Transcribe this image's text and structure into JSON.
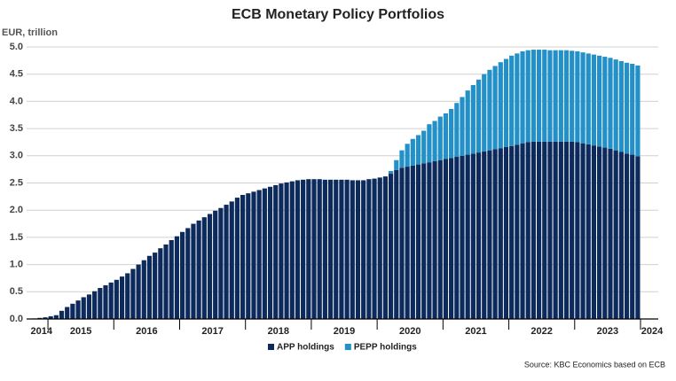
{
  "chart_data": {
    "type": "stacked_bar",
    "title": "ECB Monetary Policy Portfolios",
    "y_label": "EUR, trillion",
    "source": "Source: KBC Economics based on ECB",
    "year_labels": [
      "2014",
      "2015",
      "2016",
      "2017",
      "2018",
      "2019",
      "2020",
      "2021",
      "2022",
      "2023",
      "2024"
    ],
    "categories": [
      null,
      null,
      null,
      null,
      null,
      null,
      null,
      null,
      null,
      null,
      null,
      null,
      null,
      null,
      null,
      null,
      null,
      null,
      null,
      null,
      null,
      null,
      null,
      null,
      null,
      null,
      null,
      null,
      null,
      null,
      null,
      null,
      null,
      null,
      null,
      null,
      null,
      null,
      null,
      null,
      null,
      null,
      null,
      null,
      null,
      null,
      null,
      null,
      null,
      null,
      null,
      null,
      null,
      null,
      null,
      null,
      null,
      null,
      null,
      null,
      null,
      null,
      null,
      null,
      null,
      null,
      null,
      null,
      null,
      null,
      null,
      null,
      null,
      null,
      null,
      null,
      null,
      null,
      null,
      null,
      null,
      null,
      null,
      null,
      null,
      null,
      null,
      null,
      null,
      null,
      null,
      null,
      null,
      null,
      null,
      null,
      null,
      null,
      null,
      null,
      null,
      null,
      null,
      null,
      null,
      null,
      null,
      null,
      null,
      null,
      null
    ],
    "series": [
      {
        "name": "APP holdings",
        "color": "#0d2a5c",
        "values": [
          0.01,
          0.02,
          0.03,
          0.05,
          0.07,
          0.15,
          0.22,
          0.28,
          0.34,
          0.4,
          0.45,
          0.51,
          0.57,
          0.62,
          0.67,
          0.72,
          0.78,
          0.84,
          0.92,
          1.0,
          1.08,
          1.16,
          1.22,
          1.3,
          1.37,
          1.45,
          1.52,
          1.6,
          1.67,
          1.75,
          1.81,
          1.87,
          1.93,
          1.99,
          2.04,
          2.1,
          2.16,
          2.23,
          2.28,
          2.31,
          2.34,
          2.37,
          2.4,
          2.43,
          2.46,
          2.49,
          2.51,
          2.53,
          2.55,
          2.56,
          2.57,
          2.57,
          2.57,
          2.56,
          2.56,
          2.56,
          2.56,
          2.56,
          2.55,
          2.55,
          2.55,
          2.57,
          2.58,
          2.6,
          2.62,
          2.67,
          2.74,
          2.78,
          2.8,
          2.82,
          2.84,
          2.86,
          2.88,
          2.9,
          2.92,
          2.94,
          2.96,
          2.98,
          3.0,
          3.02,
          3.04,
          3.06,
          3.08,
          3.1,
          3.12,
          3.14,
          3.16,
          3.18,
          3.2,
          3.23,
          3.25,
          3.26,
          3.26,
          3.26,
          3.26,
          3.26,
          3.26,
          3.26,
          3.26,
          3.25,
          3.23,
          3.21,
          3.19,
          3.17,
          3.15,
          3.13,
          3.1,
          3.07,
          3.04,
          3.02,
          2.99
        ]
      },
      {
        "name": "PEPP holdings",
        "color": "#2390c8",
        "values": [
          null,
          null,
          null,
          null,
          null,
          null,
          null,
          null,
          null,
          null,
          null,
          null,
          null,
          null,
          null,
          null,
          null,
          null,
          null,
          null,
          null,
          null,
          null,
          null,
          null,
          null,
          null,
          null,
          null,
          null,
          null,
          null,
          null,
          null,
          null,
          null,
          null,
          null,
          null,
          null,
          null,
          null,
          null,
          null,
          null,
          null,
          null,
          null,
          null,
          null,
          null,
          null,
          null,
          null,
          null,
          null,
          null,
          null,
          null,
          null,
          null,
          null,
          null,
          null,
          null,
          0.05,
          0.18,
          0.32,
          0.42,
          0.49,
          0.54,
          0.6,
          0.7,
          0.74,
          0.8,
          0.84,
          0.9,
          0.99,
          1.08,
          1.18,
          1.26,
          1.34,
          1.42,
          1.48,
          1.53,
          1.58,
          1.62,
          1.66,
          1.68,
          1.69,
          1.69,
          1.69,
          1.69,
          1.69,
          1.68,
          1.68,
          1.68,
          1.68,
          1.67,
          1.67,
          1.67,
          1.67,
          1.67,
          1.67,
          1.67,
          1.67,
          1.67,
          1.67,
          1.67,
          1.67,
          1.67
        ]
      }
    ],
    "ylim": [
      0,
      5
    ],
    "yticks": [
      {
        "value": 0,
        "label": "0.0"
      },
      0.5,
      {
        "value": 1,
        "label": "1.0"
      },
      1.5,
      {
        "value": 2,
        "label": "2.0"
      },
      2.5,
      {
        "value": 3,
        "label": "3.0"
      },
      3.5,
      {
        "value": 4,
        "label": "4.0"
      },
      4.5,
      {
        "value": 5,
        "label": "5.0"
      }
    ],
    "grid": true
  }
}
